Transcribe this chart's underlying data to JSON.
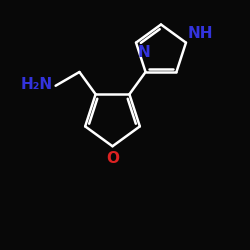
{
  "bg_color": "#080808",
  "bond_color": "#ffffff",
  "bond_width": 1.8,
  "furan_O_color": "#dd2222",
  "N_color": "#3333dd",
  "H2N_label": "H₂N",
  "NH_label": "NH",
  "N_label": "N",
  "O_label": "O"
}
